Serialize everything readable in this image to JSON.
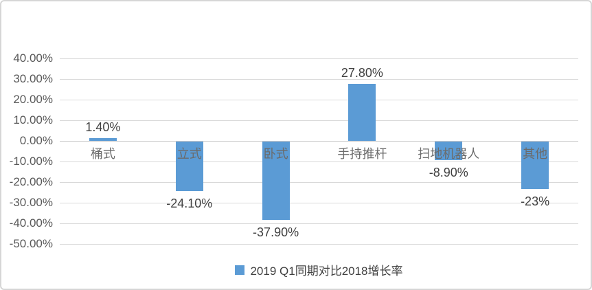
{
  "chart_data": {
    "type": "bar",
    "categories": [
      "桶式",
      "立式",
      "卧式",
      "手持推杆",
      "扫地机器人",
      "其他"
    ],
    "series": [
      {
        "name": "2019 Q1同期对比2018增长率",
        "values": [
          1.4,
          -24.1,
          -37.9,
          27.8,
          -8.9,
          -23
        ],
        "value_labels": [
          "1.40%",
          "-24.10%",
          "-37.90%",
          "27.80%",
          "-8.90%",
          "-23%"
        ],
        "color": "#5b9bd5"
      }
    ],
    "title": "",
    "xlabel": "",
    "ylabel": "",
    "ylim": [
      -50,
      40
    ],
    "ytick_step": 10,
    "ytick_labels": [
      "40.00%",
      "30.00%",
      "20.00%",
      "10.00%",
      "0.00%",
      "-10.00%",
      "-20.00%",
      "-30.00%",
      "-40.00%",
      "-50.00%"
    ],
    "grid": true,
    "legend_position": "bottom"
  },
  "legend": {
    "label": "2019 Q1同期对比2018增长率",
    "marker_color": "#5b9bd5"
  },
  "colors": {
    "bar": "#5b9bd5",
    "gridline": "#d9d9d9",
    "axis_line": "#c9c9c9",
    "axis_text": "#595959",
    "data_label_text": "#404040",
    "category_text": "#6b6b6b",
    "frame_border": "#d6d6d6",
    "background": "#ffffff"
  }
}
